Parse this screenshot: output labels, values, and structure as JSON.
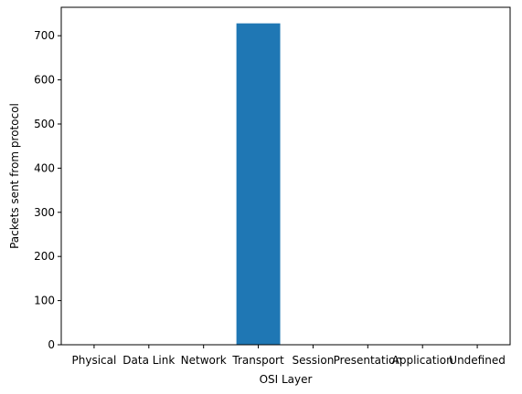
{
  "chart_data": {
    "type": "bar",
    "categories": [
      "Physical",
      "Data Link",
      "Network",
      "Transport",
      "Session",
      "Presentation",
      "Application",
      "Undefined"
    ],
    "values": [
      0,
      0,
      0,
      728,
      0,
      0,
      0,
      0
    ],
    "title": "",
    "xlabel": "OSI Layer",
    "ylabel": "Packets sent from protocol",
    "ylim": [
      0,
      764.4
    ],
    "yticks": [
      0,
      100,
      200,
      300,
      400,
      500,
      600,
      700
    ],
    "bar_color": "#1f77b4",
    "grid": false,
    "legend": "none"
  }
}
